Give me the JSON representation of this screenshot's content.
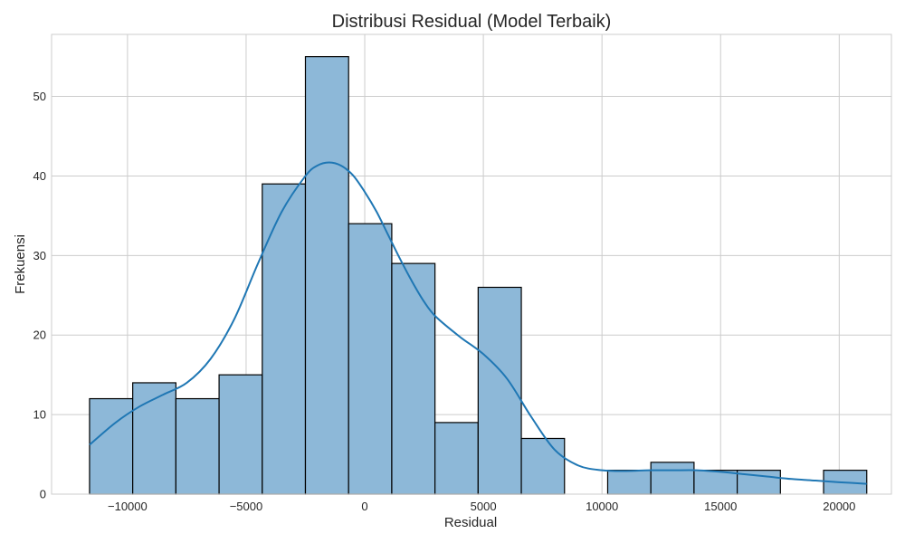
{
  "chart_data": {
    "type": "bar",
    "subtype": "histogram",
    "title": "Distribusi Residual (Model Terbaik)",
    "xlabel": "Residual",
    "ylabel": "Frekuensi",
    "xlim": [
      -13200,
      22200
    ],
    "ylim": [
      0,
      57.8
    ],
    "xticks": [
      -10000,
      -5000,
      0,
      5000,
      10000,
      15000,
      20000
    ],
    "xtick_labels": [
      "−10000",
      "−5000",
      "0",
      "5000",
      "10000",
      "15000",
      "20000"
    ],
    "yticks": [
      0,
      10,
      20,
      30,
      40,
      50
    ],
    "ytick_labels": [
      "0",
      "10",
      "20",
      "30",
      "40",
      "50"
    ],
    "grid": true,
    "bar_color": "#8db8d8",
    "edge_color": "#000000",
    "kde_color": "#1f77b4",
    "bins": [
      {
        "x0": -11600,
        "x1": -9780,
        "count": 12
      },
      {
        "x0": -9780,
        "x1": -7960,
        "count": 14
      },
      {
        "x0": -7960,
        "x1": -6140,
        "count": 12
      },
      {
        "x0": -6140,
        "x1": -4320,
        "count": 15
      },
      {
        "x0": -4320,
        "x1": -2500,
        "count": 39
      },
      {
        "x0": -2500,
        "x1": -680,
        "count": 55
      },
      {
        "x0": -680,
        "x1": 1140,
        "count": 34
      },
      {
        "x0": 1140,
        "x1": 2960,
        "count": 29
      },
      {
        "x0": 2960,
        "x1": 4780,
        "count": 9
      },
      {
        "x0": 4780,
        "x1": 6600,
        "count": 26
      },
      {
        "x0": 6600,
        "x1": 8420,
        "count": 7
      },
      {
        "x0": 8420,
        "x1": 10240,
        "count": 0
      },
      {
        "x0": 10240,
        "x1": 12060,
        "count": 3
      },
      {
        "x0": 12060,
        "x1": 13880,
        "count": 4
      },
      {
        "x0": 13880,
        "x1": 15700,
        "count": 3
      },
      {
        "x0": 15700,
        "x1": 17520,
        "count": 3
      },
      {
        "x0": 17520,
        "x1": 19340,
        "count": 0
      },
      {
        "x0": 19340,
        "x1": 21160,
        "count": 3
      }
    ],
    "kde": {
      "x": [
        -11600,
        -10500,
        -9500,
        -8500,
        -7500,
        -6500,
        -5500,
        -4500,
        -3500,
        -2500,
        -2000,
        -1500,
        -1000,
        -500,
        0,
        500,
        1000,
        1500,
        2000,
        2500,
        3000,
        4000,
        5000,
        6000,
        7000,
        8000,
        9000,
        10000,
        11000,
        12000,
        13000,
        14000,
        15000,
        16000,
        17000,
        18000,
        19000,
        20000,
        21160
      ],
      "y": [
        6.2,
        9.0,
        11.0,
        12.5,
        14.0,
        17.0,
        22.0,
        29.0,
        35.5,
        40.0,
        41.3,
        41.7,
        41.3,
        40.1,
        38.0,
        35.5,
        32.5,
        29.5,
        26.7,
        24.2,
        22.3,
        19.8,
        17.6,
        14.5,
        9.8,
        5.6,
        3.6,
        3.0,
        2.9,
        3.0,
        3.0,
        3.0,
        2.8,
        2.5,
        2.2,
        1.9,
        1.7,
        1.5,
        1.3
      ]
    }
  }
}
